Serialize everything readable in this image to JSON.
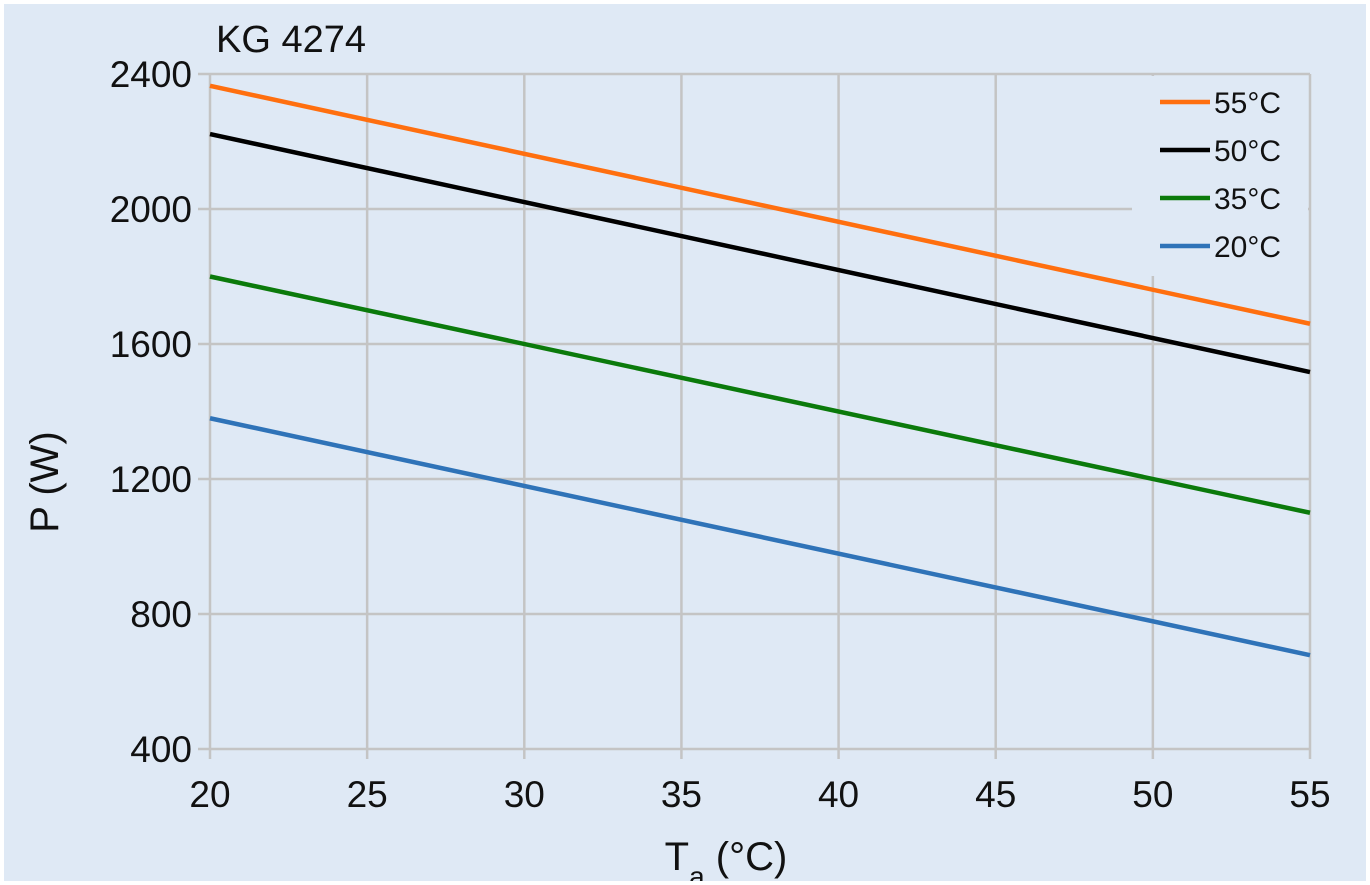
{
  "chart_data": {
    "type": "line",
    "title": "KG 4274",
    "xlabel": "T",
    "xlabel_sub": "a",
    "xlabel_unit": " (°C)",
    "ylabel": "P (W)",
    "xlim": [
      20,
      55
    ],
    "ylim": [
      400,
      2400
    ],
    "x_ticks": [
      20,
      25,
      30,
      35,
      40,
      45,
      50,
      55
    ],
    "y_ticks": [
      400,
      800,
      1200,
      1600,
      2000,
      2400
    ],
    "grid": true,
    "legend_position": "top-right",
    "series": [
      {
        "name": "55°C",
        "color": "#ff6f0f",
        "x": [
          20,
          55
        ],
        "y": [
          2365,
          1660
        ]
      },
      {
        "name": "50°C",
        "color": "#000000",
        "x": [
          20,
          55
        ],
        "y": [
          2222,
          1517
        ]
      },
      {
        "name": "35°C",
        "color": "#0b7a0b",
        "x": [
          20,
          55
        ],
        "y": [
          1800,
          1100
        ]
      },
      {
        "name": "20°C",
        "color": "#2f73b8",
        "x": [
          20,
          55
        ],
        "y": [
          1380,
          678
        ]
      }
    ]
  }
}
